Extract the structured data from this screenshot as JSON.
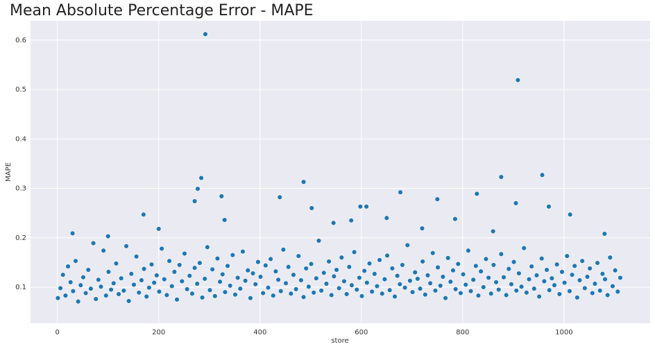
{
  "chart_data": {
    "type": "scatter",
    "title": "Mean Absolute Percentage Error - MAPE",
    "xlabel": "store",
    "ylabel": "MAPE",
    "color": "#1f77b4",
    "grid": true,
    "x": [
      1,
      6,
      11,
      16,
      21,
      26,
      31,
      36,
      41,
      46,
      51,
      56,
      61,
      66,
      71,
      76,
      81,
      86,
      91,
      96,
      101,
      106,
      111,
      116,
      121,
      126,
      131,
      136,
      141,
      146,
      151,
      156,
      161,
      166,
      171,
      176,
      181,
      186,
      191,
      196,
      201,
      206,
      211,
      216,
      221,
      226,
      231,
      236,
      241,
      246,
      251,
      256,
      261,
      266,
      271,
      276,
      281,
      286,
      291,
      296,
      301,
      306,
      311,
      316,
      321,
      326,
      331,
      336,
      341,
      346,
      351,
      356,
      361,
      366,
      371,
      376,
      381,
      386,
      391,
      396,
      401,
      406,
      411,
      416,
      421,
      426,
      431,
      436,
      441,
      446,
      451,
      456,
      461,
      466,
      471,
      476,
      481,
      486,
      491,
      496,
      501,
      506,
      511,
      516,
      521,
      526,
      531,
      536,
      541,
      546,
      551,
      556,
      561,
      566,
      571,
      576,
      581,
      586,
      591,
      596,
      601,
      606,
      611,
      616,
      621,
      626,
      631,
      636,
      641,
      646,
      651,
      656,
      661,
      666,
      671,
      676,
      681,
      686,
      691,
      696,
      701,
      706,
      711,
      716,
      721,
      726,
      731,
      736,
      741,
      746,
      751,
      756,
      761,
      766,
      771,
      776,
      781,
      786,
      791,
      796,
      801,
      806,
      811,
      816,
      821,
      826,
      831,
      836,
      841,
      846,
      851,
      856,
      861,
      866,
      871,
      876,
      881,
      886,
      891,
      896,
      901,
      906,
      911,
      916,
      921,
      926,
      931,
      936,
      941,
      946,
      951,
      956,
      961,
      966,
      971,
      976,
      981,
      986,
      991,
      996,
      1001,
      1006,
      1011,
      1016,
      1021,
      1026,
      1031,
      1036,
      1041,
      1046,
      1051,
      1056,
      1061,
      1066,
      1071,
      1076,
      1081,
      1086,
      1091,
      1096,
      1101,
      1106,
      1111,
      292,
      909,
      957,
      876,
      284,
      486,
      277,
      677,
      828,
      324,
      439,
      750,
      271,
      905,
      970,
      598,
      610,
      502,
      170,
      1012,
      30,
      100,
      200,
      330,
      545,
      580,
      650,
      720,
      785,
      860,
      1080
    ],
    "values": [
      0.078,
      0.098,
      0.125,
      0.083,
      0.142,
      0.11,
      0.092,
      0.153,
      0.071,
      0.104,
      0.12,
      0.088,
      0.135,
      0.097,
      0.189,
      0.076,
      0.115,
      0.101,
      0.174,
      0.083,
      0.131,
      0.095,
      0.108,
      0.148,
      0.086,
      0.118,
      0.093,
      0.183,
      0.072,
      0.127,
      0.105,
      0.162,
      0.089,
      0.114,
      0.137,
      0.081,
      0.099,
      0.146,
      0.109,
      0.124,
      0.091,
      0.178,
      0.116,
      0.084,
      0.153,
      0.102,
      0.131,
      0.075,
      0.145,
      0.112,
      0.168,
      0.096,
      0.123,
      0.087,
      0.139,
      0.107,
      0.149,
      0.079,
      0.117,
      0.181,
      0.094,
      0.136,
      0.082,
      0.158,
      0.111,
      0.126,
      0.09,
      0.143,
      0.103,
      0.165,
      0.085,
      0.119,
      0.097,
      0.172,
      0.113,
      0.134,
      0.078,
      0.128,
      0.106,
      0.151,
      0.121,
      0.088,
      0.144,
      0.099,
      0.157,
      0.083,
      0.132,
      0.115,
      0.092,
      0.176,
      0.108,
      0.141,
      0.087,
      0.125,
      0.096,
      0.163,
      0.114,
      0.08,
      0.138,
      0.101,
      0.147,
      0.089,
      0.118,
      0.194,
      0.093,
      0.129,
      0.107,
      0.152,
      0.084,
      0.122,
      0.135,
      0.098,
      0.16,
      0.112,
      0.086,
      0.141,
      0.104,
      0.171,
      0.095,
      0.119,
      0.082,
      0.133,
      0.109,
      0.148,
      0.091,
      0.127,
      0.102,
      0.155,
      0.087,
      0.116,
      0.164,
      0.094,
      0.138,
      0.081,
      0.123,
      0.106,
      0.145,
      0.099,
      0.185,
      0.113,
      0.09,
      0.13,
      0.117,
      0.097,
      0.152,
      0.085,
      0.124,
      0.108,
      0.169,
      0.093,
      0.14,
      0.103,
      0.121,
      0.078,
      0.159,
      0.111,
      0.134,
      0.096,
      0.147,
      0.088,
      0.126,
      0.105,
      0.174,
      0.092,
      0.115,
      0.143,
      0.083,
      0.132,
      0.1,
      0.157,
      0.119,
      0.087,
      0.145,
      0.11,
      0.095,
      0.167,
      0.12,
      0.084,
      0.137,
      0.106,
      0.151,
      0.093,
      0.128,
      0.101,
      0.179,
      0.089,
      0.116,
      0.142,
      0.097,
      0.124,
      0.081,
      0.158,
      0.112,
      0.135,
      0.094,
      0.118,
      0.104,
      0.146,
      0.086,
      0.131,
      0.109,
      0.163,
      0.092,
      0.125,
      0.143,
      0.079,
      0.114,
      0.153,
      0.098,
      0.121,
      0.138,
      0.088,
      0.107,
      0.149,
      0.093,
      0.127,
      0.116,
      0.084,
      0.16,
      0.102,
      0.134,
      0.091,
      0.119,
      0.612,
      0.519,
      0.327,
      0.323,
      0.321,
      0.313,
      0.299,
      0.292,
      0.289,
      0.284,
      0.282,
      0.278,
      0.274,
      0.27,
      0.263,
      0.263,
      0.263,
      0.26,
      0.247,
      0.247,
      0.209,
      0.203,
      0.218,
      0.236,
      0.23,
      0.235,
      0.24,
      0.219,
      0.238,
      0.213,
      0.208
    ],
    "xlim": [
      -53,
      1170
    ],
    "xticks": [
      0,
      200,
      400,
      600,
      800,
      1000
    ],
    "ylim": [
      0.027,
      0.639
    ],
    "yticks": [
      0.1,
      0.2,
      0.3,
      0.4,
      0.5,
      0.6
    ]
  }
}
